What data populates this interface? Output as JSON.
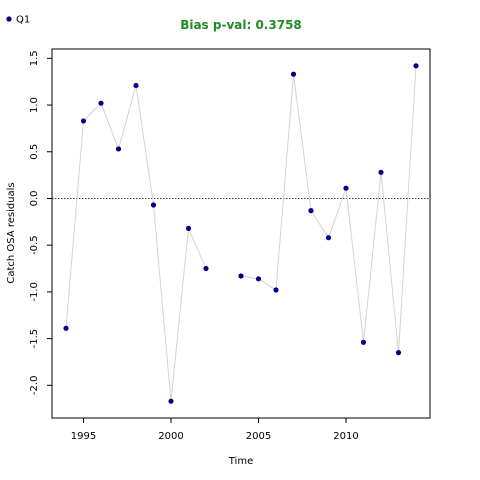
{
  "chart_data": {
    "type": "line",
    "title": "Bias p-val: 0.3758",
    "title_color": "#228B22",
    "xlabel": "Time",
    "ylabel": "Catch OSA residuals",
    "xlim": [
      1993.2,
      2014.8
    ],
    "ylim": [
      -2.35,
      1.6
    ],
    "x_ticks": [
      1995,
      2000,
      2005,
      2010
    ],
    "y_ticks": [
      -2.0,
      -1.5,
      -1.0,
      -0.5,
      0.0,
      0.5,
      1.0,
      1.5
    ],
    "y_tick_labels": [
      "-2.0",
      "-1.5",
      "-1.0",
      "-0.5",
      "0.0",
      "0.5",
      "1.0",
      "1.5"
    ],
    "reference_line": {
      "y": 0,
      "style": "dotted"
    },
    "legend": {
      "position": "top-left",
      "entries": [
        "Q1"
      ]
    },
    "series": [
      {
        "name": "Q1",
        "point_color": "#00008B",
        "line_color": "#d3d3d3",
        "segments": [
          {
            "x": [
              1994,
              1995,
              1996,
              1997,
              1998,
              1999,
              2000,
              2001,
              2002
            ],
            "y": [
              -1.39,
              0.83,
              1.02,
              0.53,
              1.21,
              -0.07,
              -2.17,
              -0.32,
              -0.75
            ]
          },
          {
            "x": [
              2004,
              2005,
              2006,
              2007,
              2008,
              2009,
              2010,
              2011,
              2012,
              2013,
              2014
            ],
            "y": [
              -0.83,
              -0.86,
              -0.98,
              1.33,
              -0.13,
              -0.42,
              0.11,
              -1.54,
              0.28,
              -1.65,
              1.42
            ]
          }
        ]
      }
    ]
  }
}
